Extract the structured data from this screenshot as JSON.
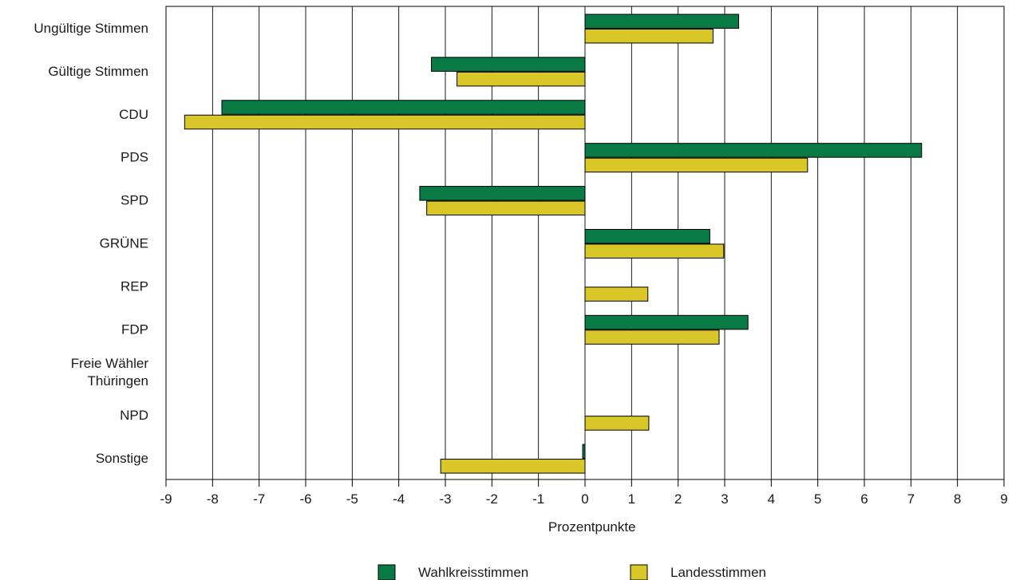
{
  "chart_data": {
    "type": "bar",
    "orientation": "horizontal",
    "categories": [
      [
        "Ungültige Stimmen"
      ],
      [
        "Gültige Stimmen"
      ],
      [
        "CDU"
      ],
      [
        "PDS"
      ],
      [
        "SPD"
      ],
      [
        "GRÜNE"
      ],
      [
        "REP"
      ],
      [
        "FDP"
      ],
      [
        "Freie Wähler",
        "Thüringen"
      ],
      [
        "NPD"
      ],
      [
        "Sonstige"
      ]
    ],
    "series": [
      {
        "name": "Wahlkreisstimmen",
        "color": "#0a7a45",
        "values": [
          3.3,
          -3.3,
          -7.8,
          7.23,
          -3.55,
          2.68,
          null,
          3.5,
          null,
          null,
          -0.05
        ]
      },
      {
        "name": "Landesstimmen",
        "color": "#d9c72a",
        "values": [
          2.75,
          -2.75,
          -8.6,
          4.78,
          -3.4,
          2.98,
          1.35,
          2.88,
          null,
          1.37,
          -3.1
        ]
      }
    ],
    "xlabel": "Prozentpunkte",
    "ylabel": "",
    "xlim": [
      -9,
      9
    ],
    "ticks": [
      -9,
      -8,
      -7,
      -6,
      -5,
      -4,
      -3,
      -2,
      -1,
      0,
      1,
      2,
      3,
      4,
      5,
      6,
      7,
      8,
      9
    ],
    "grid": "vertical",
    "legend": "bottom"
  }
}
